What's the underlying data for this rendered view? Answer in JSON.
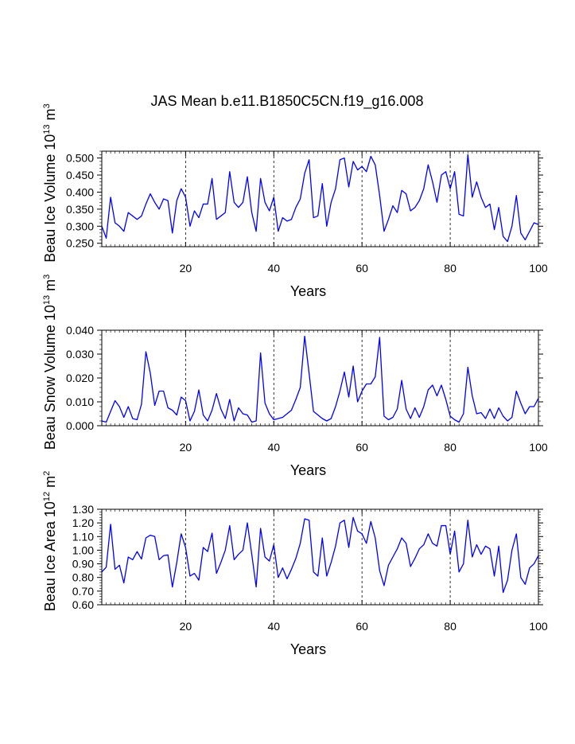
{
  "title": "JAS Mean b.e11.B1850C5CN.f19_g16.008",
  "colors": {
    "line": "#0000ff",
    "axis": "#000000",
    "background": "#ffffff"
  },
  "chart_data": [
    {
      "type": "line",
      "ylabel": "Beau Ice Volume 10^13 m^3",
      "ylabel_parts": {
        "before": "Beau Ice Volume 10",
        "exp1": "13",
        "mid": " m",
        "exp2": "3"
      },
      "xlabel": "Years",
      "xlim": [
        1,
        100
      ],
      "ylim": [
        0.24,
        0.52
      ],
      "xticks": [
        20,
        40,
        60,
        80,
        100
      ],
      "xtick_labels": [
        "20",
        "40",
        "60",
        "80",
        "100"
      ],
      "yticks": [
        0.25,
        0.3,
        0.35,
        0.4,
        0.45,
        0.5
      ],
      "ytick_labels": [
        "0.250",
        "0.300",
        "0.350",
        "0.400",
        "0.450",
        "0.500"
      ],
      "grid": "dashed vertical lines at 20, 40, 60, 80",
      "x": [
        1,
        2,
        3,
        4,
        5,
        6,
        7,
        8,
        9,
        10,
        11,
        12,
        13,
        14,
        15,
        16,
        17,
        18,
        19,
        20,
        21,
        22,
        23,
        24,
        25,
        26,
        27,
        28,
        29,
        30,
        31,
        32,
        33,
        34,
        35,
        36,
        37,
        38,
        39,
        40,
        41,
        42,
        43,
        44,
        45,
        46,
        47,
        48,
        49,
        50,
        51,
        52,
        53,
        54,
        55,
        56,
        57,
        58,
        59,
        60,
        61,
        62,
        63,
        64,
        65,
        66,
        67,
        68,
        69,
        70,
        71,
        72,
        73,
        74,
        75,
        76,
        77,
        78,
        79,
        80,
        81,
        82,
        83,
        84,
        85,
        86,
        87,
        88,
        89,
        90,
        91,
        92,
        93,
        94,
        95,
        96,
        97,
        98,
        99,
        100
      ],
      "series": [
        {
          "values": [
            0.3,
            0.265,
            0.385,
            0.31,
            0.3,
            0.285,
            0.34,
            0.33,
            0.32,
            0.33,
            0.365,
            0.395,
            0.37,
            0.35,
            0.38,
            0.375,
            0.28,
            0.375,
            0.41,
            0.385,
            0.3,
            0.345,
            0.325,
            0.365,
            0.365,
            0.44,
            0.32,
            0.33,
            0.34,
            0.46,
            0.37,
            0.355,
            0.37,
            0.445,
            0.34,
            0.285,
            0.44,
            0.37,
            0.345,
            0.385,
            0.285,
            0.325,
            0.315,
            0.32,
            0.355,
            0.38,
            0.455,
            0.495,
            0.325,
            0.33,
            0.425,
            0.3,
            0.37,
            0.41,
            0.495,
            0.5,
            0.415,
            0.49,
            0.465,
            0.475,
            0.46,
            0.505,
            0.48,
            0.39,
            0.285,
            0.32,
            0.36,
            0.34,
            0.405,
            0.395,
            0.345,
            0.355,
            0.375,
            0.41,
            0.48,
            0.43,
            0.37,
            0.45,
            0.46,
            0.41,
            0.46,
            0.335,
            0.33,
            0.51,
            0.385,
            0.43,
            0.385,
            0.355,
            0.365,
            0.29,
            0.355,
            0.27,
            0.255,
            0.3,
            0.39,
            0.28,
            0.26,
            0.285,
            0.31,
            0.305
          ]
        }
      ]
    },
    {
      "type": "line",
      "ylabel": "Beau Snow Volume 10^13 m^3",
      "ylabel_parts": {
        "before": "Beau Snow Volume 10",
        "exp1": "13",
        "mid": " m",
        "exp2": "3"
      },
      "xlabel": "Years",
      "xlim": [
        1,
        100
      ],
      "ylim": [
        0.0,
        0.04
      ],
      "xticks": [
        20,
        40,
        60,
        80,
        100
      ],
      "xtick_labels": [
        "20",
        "40",
        "60",
        "80",
        "100"
      ],
      "yticks": [
        0.0,
        0.01,
        0.02,
        0.03,
        0.04
      ],
      "ytick_labels": [
        "0.000",
        "0.010",
        "0.020",
        "0.030",
        "0.040"
      ],
      "grid": "dashed vertical lines at 20, 40, 60, 80",
      "x": [
        1,
        2,
        3,
        4,
        5,
        6,
        7,
        8,
        9,
        10,
        11,
        12,
        13,
        14,
        15,
        16,
        17,
        18,
        19,
        20,
        21,
        22,
        23,
        24,
        25,
        26,
        27,
        28,
        29,
        30,
        31,
        32,
        33,
        34,
        35,
        36,
        37,
        38,
        39,
        40,
        41,
        42,
        43,
        44,
        45,
        46,
        47,
        48,
        49,
        50,
        51,
        52,
        53,
        54,
        55,
        56,
        57,
        58,
        59,
        60,
        61,
        62,
        63,
        64,
        65,
        66,
        67,
        68,
        69,
        70,
        71,
        72,
        73,
        74,
        75,
        76,
        77,
        78,
        79,
        80,
        81,
        82,
        83,
        84,
        85,
        86,
        87,
        88,
        89,
        90,
        91,
        92,
        93,
        94,
        95,
        96,
        97,
        98,
        99,
        100
      ],
      "series": [
        {
          "values": [
            0.002,
            0.0015,
            0.006,
            0.0105,
            0.008,
            0.0035,
            0.008,
            0.003,
            0.0025,
            0.009,
            0.031,
            0.022,
            0.0085,
            0.0145,
            0.0145,
            0.0075,
            0.0065,
            0.0045,
            0.012,
            0.0105,
            0.002,
            0.006,
            0.015,
            0.0045,
            0.002,
            0.0065,
            0.0135,
            0.007,
            0.003,
            0.011,
            0.002,
            0.0075,
            0.005,
            0.0045,
            0.0015,
            0.002,
            0.0305,
            0.0095,
            0.005,
            0.0025,
            0.003,
            0.0035,
            0.005,
            0.0065,
            0.011,
            0.016,
            0.0375,
            0.022,
            0.006,
            0.0045,
            0.003,
            0.002,
            0.003,
            0.008,
            0.0145,
            0.0225,
            0.012,
            0.025,
            0.01,
            0.0145,
            0.0175,
            0.0175,
            0.0205,
            0.037,
            0.004,
            0.0025,
            0.0035,
            0.007,
            0.019,
            0.007,
            0.003,
            0.0075,
            0.0035,
            0.008,
            0.015,
            0.017,
            0.0125,
            0.017,
            0.011,
            0.004,
            0.0025,
            0.0015,
            0.005,
            0.0245,
            0.0125,
            0.005,
            0.0055,
            0.003,
            0.007,
            0.003,
            0.0075,
            0.004,
            0.002,
            0.0035,
            0.0145,
            0.0095,
            0.005,
            0.008,
            0.008,
            0.0115
          ]
        }
      ]
    },
    {
      "type": "line",
      "ylabel": "Beau Ice Area 10^12 m^2",
      "ylabel_parts": {
        "before": "Beau Ice Area 10",
        "exp1": "12",
        "mid": " m",
        "exp2": "2"
      },
      "xlabel": "Years",
      "xlim": [
        1,
        100
      ],
      "ylim": [
        0.6,
        1.3
      ],
      "xticks": [
        20,
        40,
        60,
        80,
        100
      ],
      "xtick_labels": [
        "20",
        "40",
        "60",
        "80",
        "100"
      ],
      "yticks": [
        0.6,
        0.7,
        0.8,
        0.9,
        1.0,
        1.1,
        1.2,
        1.3
      ],
      "ytick_labels": [
        "0.60",
        "0.70",
        "0.80",
        "0.90",
        "1.00",
        "1.10",
        "1.20",
        "1.30"
      ],
      "grid": "dashed vertical lines at 20, 40, 60, 80",
      "x": [
        1,
        2,
        3,
        4,
        5,
        6,
        7,
        8,
        9,
        10,
        11,
        12,
        13,
        14,
        15,
        16,
        17,
        18,
        19,
        20,
        21,
        22,
        23,
        24,
        25,
        26,
        27,
        28,
        29,
        30,
        31,
        32,
        33,
        34,
        35,
        36,
        37,
        38,
        39,
        40,
        41,
        42,
        43,
        44,
        45,
        46,
        47,
        48,
        49,
        50,
        51,
        52,
        53,
        54,
        55,
        56,
        57,
        58,
        59,
        60,
        61,
        62,
        63,
        64,
        65,
        66,
        67,
        68,
        69,
        70,
        71,
        72,
        73,
        74,
        75,
        76,
        77,
        78,
        79,
        80,
        81,
        82,
        83,
        84,
        85,
        86,
        87,
        88,
        89,
        90,
        91,
        92,
        93,
        94,
        95,
        96,
        97,
        98,
        99,
        100
      ],
      "series": [
        {
          "values": [
            0.84,
            0.875,
            1.19,
            0.86,
            0.89,
            0.76,
            0.95,
            0.93,
            0.99,
            0.935,
            1.09,
            1.11,
            1.1,
            0.93,
            0.96,
            0.965,
            0.73,
            0.91,
            1.12,
            1.02,
            0.81,
            0.83,
            0.78,
            1.02,
            0.99,
            1.125,
            0.83,
            0.91,
            1.0,
            1.18,
            0.93,
            0.97,
            1.0,
            1.2,
            0.97,
            0.73,
            1.16,
            0.95,
            0.92,
            1.04,
            0.8,
            0.87,
            0.79,
            0.86,
            0.94,
            1.05,
            1.23,
            1.22,
            0.84,
            0.81,
            1.09,
            0.81,
            0.91,
            1.03,
            1.2,
            1.22,
            1.02,
            1.24,
            1.14,
            1.12,
            1.05,
            1.21,
            1.09,
            0.85,
            0.74,
            0.89,
            0.95,
            1.01,
            1.09,
            1.05,
            0.88,
            0.94,
            1.01,
            1.04,
            1.12,
            1.05,
            1.03,
            1.18,
            1.18,
            0.97,
            1.14,
            0.84,
            0.9,
            1.22,
            0.95,
            1.04,
            0.97,
            1.03,
            1.01,
            0.81,
            1.03,
            0.69,
            0.78,
            1.0,
            1.12,
            0.8,
            0.75,
            0.87,
            0.9,
            0.96
          ]
        }
      ]
    }
  ]
}
